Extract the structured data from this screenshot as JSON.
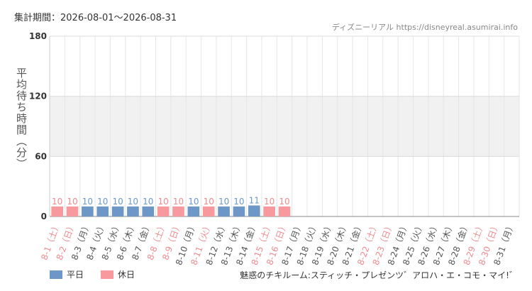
{
  "header": {
    "period": "集計期間：2026-08-01～2026-08-31",
    "source": "ディズニーリアル https://disneyreal.asumirai.info"
  },
  "footer": {
    "attraction": "魅惑のチキルーム:スティッチ・プレゼンツ゛アロハ・エ・コモ・マイ!゛"
  },
  "colors": {
    "weekday": "#6d97c6",
    "holiday": "#f89a9d",
    "weekday_text": "#555555",
    "holiday_text": "#f08a8f"
  },
  "chart_data": {
    "type": "bar",
    "ylabel": "平均待ち時間（分）",
    "ylim": [
      0,
      180
    ],
    "yticks": [
      0,
      60,
      120,
      180
    ],
    "grid": true,
    "legend": [
      {
        "name": "平日",
        "key": "weekday"
      },
      {
        "name": "休日",
        "key": "holiday"
      }
    ],
    "legend_position": "bottom-left",
    "categories": [
      "8-1（土）",
      "8-2（日）",
      "8-3（月）",
      "8-4（火）",
      "8-5（水）",
      "8-6（木）",
      "8-7（金）",
      "8-8（土）",
      "8-9（日）",
      "8-10（月）",
      "8-11（火）",
      "8-12（水）",
      "8-13（木）",
      "8-14（金）",
      "8-15（土）",
      "8-16（日）",
      "8-17（月）",
      "8-18（火）",
      "8-19（水）",
      "8-20（木）",
      "8-21（金）",
      "8-22（土）",
      "8-23（日）",
      "8-24（月）",
      "8-25（火）",
      "8-26（水）",
      "8-27（木）",
      "8-28（金）",
      "8-29（土）",
      "8-30（日）",
      "8-31（月）"
    ],
    "day_type": [
      "holiday",
      "holiday",
      "weekday",
      "weekday",
      "weekday",
      "weekday",
      "weekday",
      "holiday",
      "holiday",
      "weekday",
      "holiday",
      "weekday",
      "weekday",
      "weekday",
      "holiday",
      "holiday",
      "weekday",
      "weekday",
      "weekday",
      "weekday",
      "weekday",
      "holiday",
      "holiday",
      "weekday",
      "weekday",
      "weekday",
      "weekday",
      "weekday",
      "holiday",
      "holiday",
      "weekday"
    ],
    "values": [
      10,
      10,
      10,
      10,
      10,
      10,
      10,
      10,
      10,
      10,
      10,
      10,
      10,
      11,
      10,
      10,
      null,
      null,
      null,
      null,
      null,
      null,
      null,
      null,
      null,
      null,
      null,
      null,
      null,
      null,
      null
    ]
  }
}
